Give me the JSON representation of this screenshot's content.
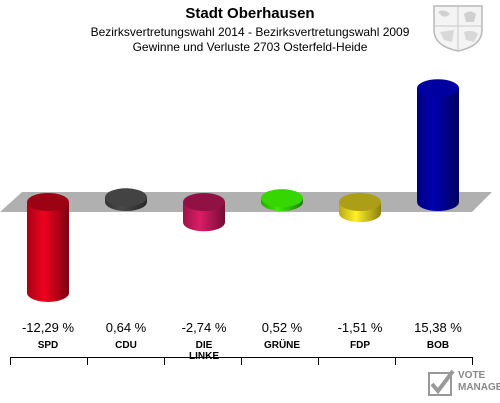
{
  "header": {
    "title": "Stadt Oberhausen",
    "subtitle": "Bezirksvertretungswahl 2014 - Bezirksvertretungswahl 2009",
    "subtitle2": "Gewinne und Verluste 2703 Osterfeld-Heide"
  },
  "watermark": {
    "line1": "VOTE",
    "line2": "MANAGER"
  },
  "crest": {
    "icon": "nrw-crest-icon"
  },
  "chart_data": {
    "type": "bar",
    "categories": [
      "SPD",
      "CDU",
      "DIE LINKE",
      "GRÜNE",
      "FDP",
      "BOB"
    ],
    "category_labels": [
      [
        "SPD"
      ],
      [
        "CDU"
      ],
      [
        "DIE",
        "LINKE"
      ],
      [
        "GRÜNE"
      ],
      [
        "FDP"
      ],
      [
        "BOB"
      ]
    ],
    "values": [
      -12.29,
      0.64,
      -2.74,
      0.52,
      -1.51,
      15.38
    ],
    "value_labels": [
      "-12,29 %",
      "0,64 %",
      "-2,74 %",
      "0,52 %",
      "-1,51 %",
      "15,38 %"
    ],
    "colors": [
      "#d0021b",
      "#404040",
      "#c0185a",
      "#33cc00",
      "#e6d21e",
      "#000099"
    ],
    "ylim": [
      -15,
      18
    ]
  }
}
